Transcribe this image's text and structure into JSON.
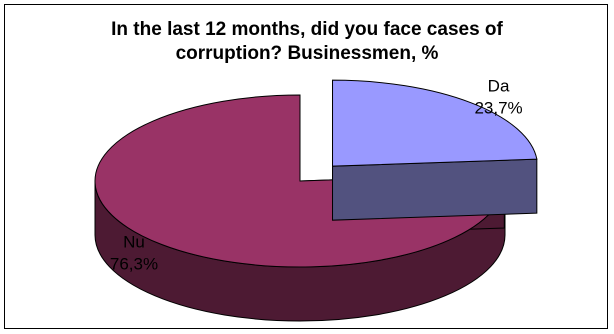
{
  "chart_data": {
    "type": "pie",
    "title_lines": [
      "In the last 12 months, did you face cases of",
      "corruption? Businessmen, %"
    ],
    "slices": [
      {
        "label": "Da",
        "value": 23.7,
        "value_label": "23,7%",
        "color": "#9999ff",
        "side_color": "#52527f",
        "exploded": true
      },
      {
        "label": "Nu",
        "value": 76.3,
        "value_label": "76,3%",
        "color": "#993366",
        "side_color": "#4d1a33",
        "exploded": false
      }
    ],
    "style": "3d-exploded",
    "legend": "none"
  }
}
